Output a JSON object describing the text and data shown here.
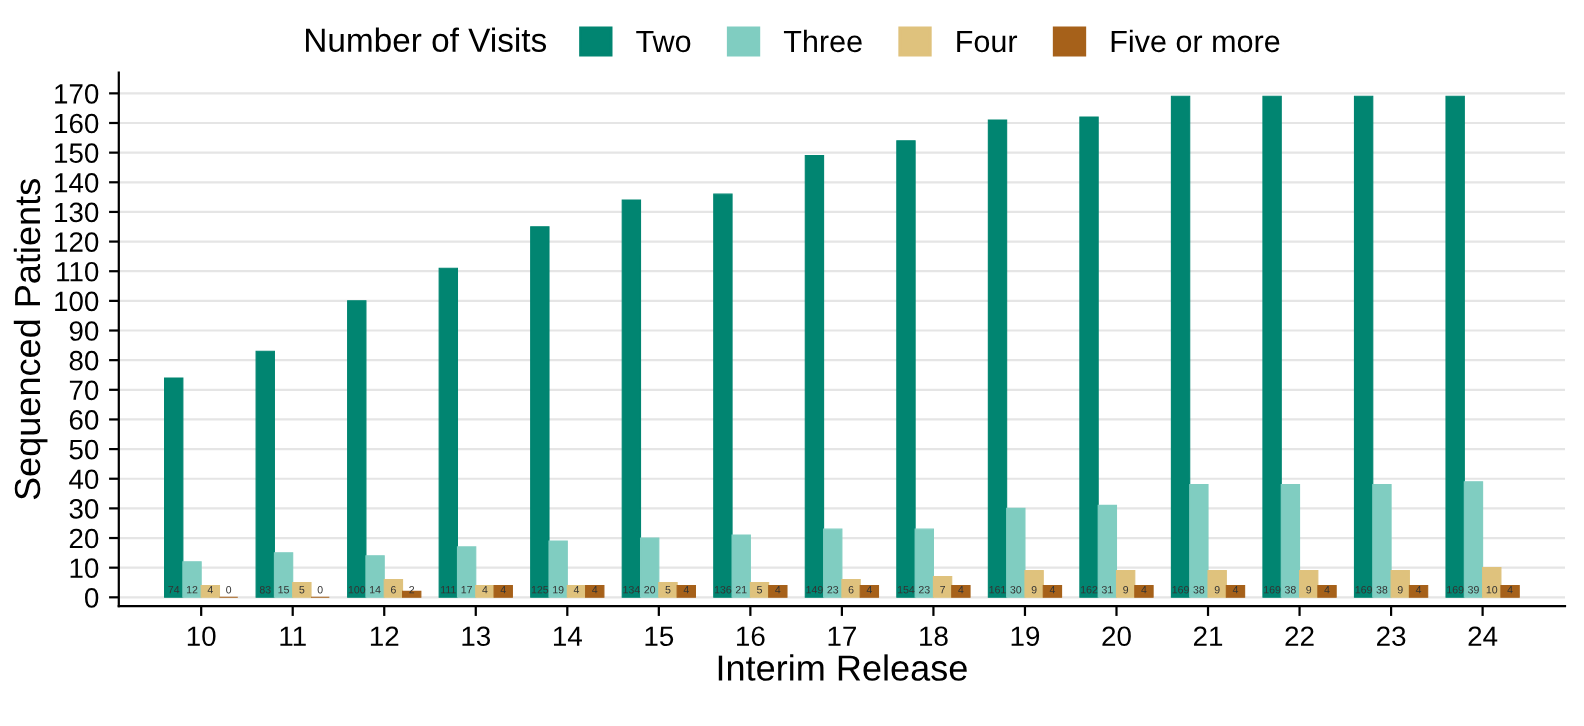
{
  "chart_data": {
    "type": "bar",
    "xlabel": "Interim Release",
    "ylabel": "Sequenced Patients",
    "legend_title": "Number of Visits",
    "categories": [
      "10",
      "11",
      "12",
      "13",
      "14",
      "15",
      "16",
      "17",
      "18",
      "19",
      "20",
      "21",
      "22",
      "23",
      "24"
    ],
    "series": [
      {
        "name": "Two",
        "color": "#018571",
        "values": [
          74,
          83,
          100,
          111,
          125,
          134,
          136,
          149,
          154,
          161,
          162,
          169,
          169,
          169,
          169
        ]
      },
      {
        "name": "Three",
        "color": "#80cdc1",
        "values": [
          12,
          15,
          14,
          17,
          19,
          20,
          21,
          23,
          23,
          30,
          31,
          38,
          38,
          38,
          39
        ]
      },
      {
        "name": "Four",
        "color": "#dfc27d",
        "values": [
          4,
          5,
          6,
          4,
          4,
          5,
          5,
          6,
          7,
          9,
          9,
          9,
          9,
          9,
          10
        ]
      },
      {
        "name": "Five or more",
        "color": "#a6611a",
        "values": [
          0,
          0,
          2,
          4,
          4,
          4,
          4,
          4,
          4,
          4,
          4,
          4,
          4,
          4,
          4
        ]
      }
    ],
    "ylim": [
      -3,
      177
    ],
    "yticks": [
      0,
      10,
      20,
      30,
      40,
      50,
      60,
      70,
      80,
      90,
      100,
      110,
      120,
      130,
      140,
      150,
      160,
      170
    ],
    "grid": "y",
    "legend": "top",
    "data_labels": true
  }
}
